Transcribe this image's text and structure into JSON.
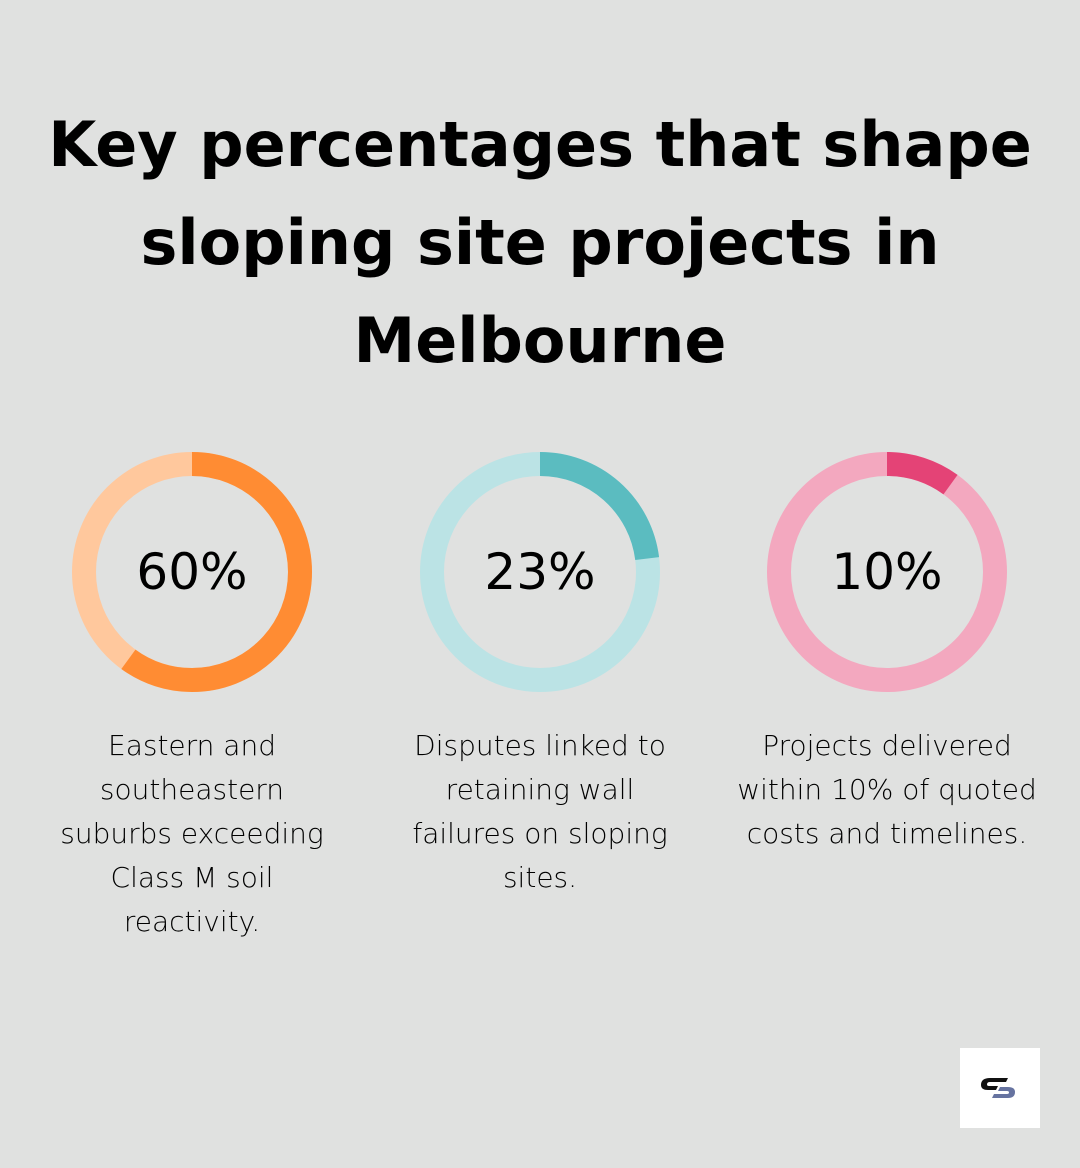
{
  "title": "Key percentages that shape sloping site projects in Melbourne",
  "title_lines": [
    "Key percentages that shape",
    "sloping site projects in",
    "Melbourne"
  ],
  "stats": [
    {
      "value": "60%",
      "percent": 60,
      "description": "Eastern and southeastern suburbs exceeding Class M soil reactivity.",
      "color": "#ff8c33",
      "track_color": "#ffc89d"
    },
    {
      "value": "23%",
      "percent": 23,
      "description": "Disputes linked to retaining wall failures on sloping sites.",
      "color": "#5bbcc0",
      "track_color": "#bbe3e5"
    },
    {
      "value": "10%",
      "percent": 10,
      "description": "Projects delivered within 10% of quoted costs and timelines.",
      "color": "#e44376",
      "track_color": "#f3a8bf"
    }
  ],
  "logo": {
    "icon": "company-logo-icon"
  },
  "chart_data": {
    "type": "pie",
    "title": "Key percentages that shape sloping site projects in Melbourne",
    "categories": [
      "Eastern and southeastern suburbs exceeding Class M soil reactivity.",
      "Disputes linked to retaining wall failures on sloping sites.",
      "Projects delivered within 10% of quoted costs and timelines."
    ],
    "values": [
      60,
      23,
      10
    ],
    "unit": "%",
    "style": "donut-progress-rings"
  }
}
